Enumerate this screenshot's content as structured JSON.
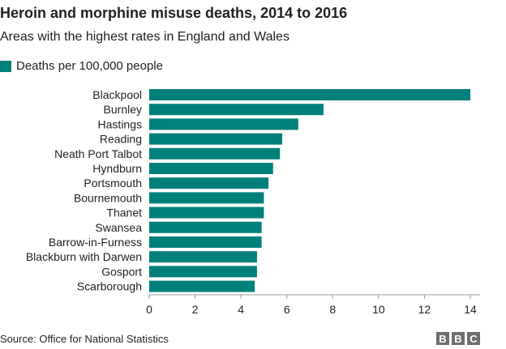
{
  "header": {
    "title": "Heroin and morphine misuse deaths, 2014 to 2016",
    "subtitle": "Areas with the highest rates in England and Wales"
  },
  "legend": {
    "label": "Deaths per 100,000 people",
    "color": "#00807a"
  },
  "footer": {
    "source": "Source: Office for National Statistics",
    "logo_letters": [
      "B",
      "B",
      "C"
    ]
  },
  "chart_data": {
    "type": "bar",
    "orientation": "horizontal",
    "categories": [
      "Blackpool",
      "Burnley",
      "Hastings",
      "Reading",
      "Neath Port Talbot",
      "Hyndburn",
      "Portsmouth",
      "Bournemouth",
      "Thanet",
      "Swansea",
      "Barrow-in-Furness",
      "Blackburn with Darwen",
      "Gosport",
      "Scarborough"
    ],
    "series": [
      {
        "name": "Deaths per 100,000 people",
        "values": [
          14.0,
          7.6,
          6.5,
          5.8,
          5.7,
          5.4,
          5.2,
          5.0,
          5.0,
          4.9,
          4.9,
          4.7,
          4.7,
          4.6
        ]
      }
    ],
    "xlim": [
      0,
      14
    ],
    "xticks": [
      0,
      2,
      4,
      6,
      8,
      10,
      12,
      14
    ],
    "bar_color": "#00807a",
    "grid": false
  }
}
